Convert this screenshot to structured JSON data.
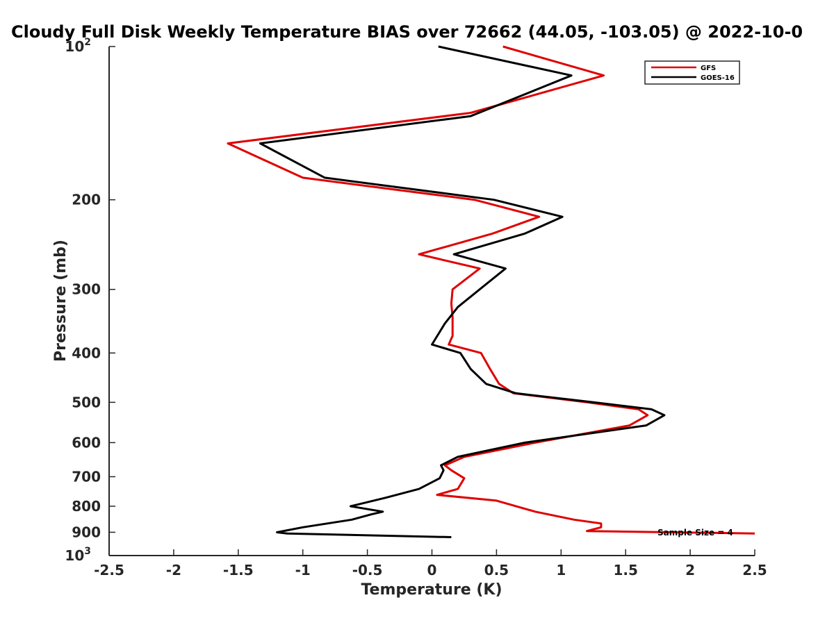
{
  "chart_data": {
    "type": "line",
    "title": "Cloudy Full Disk Weekly Temperature BIAS over 72662 (44.05, -103.05) @ 2022-10-0",
    "xlabel": "Temperature (K)",
    "ylabel": "Pressure (mb)",
    "xlim": [
      -2.5,
      2.5
    ],
    "ylim": [
      100,
      1000
    ],
    "y_scale": "log",
    "y_reversed": true,
    "grid": false,
    "legend_position": "top-right",
    "x_ticks": [
      "-2.5",
      "-2",
      "-1.5",
      "-1",
      "-0.5",
      "0",
      "0.5",
      "1",
      "1.5",
      "2",
      "2.5"
    ],
    "y_ticks": [
      {
        "value": 100,
        "base": "10",
        "exp": "2"
      },
      {
        "value": 200,
        "label": "200"
      },
      {
        "value": 300,
        "label": "300"
      },
      {
        "value": 400,
        "label": "400"
      },
      {
        "value": 500,
        "label": "500"
      },
      {
        "value": 600,
        "label": "600"
      },
      {
        "value": 700,
        "label": "700"
      },
      {
        "value": 800,
        "label": "800"
      },
      {
        "value": 900,
        "label": "900"
      },
      {
        "value": 1000,
        "base": "10",
        "exp": "3"
      }
    ],
    "annotation": "Sample Size = 4",
    "series": [
      {
        "name": "GFS",
        "color": "#e00000",
        "points": [
          [
            0.55,
            100
          ],
          [
            1.33,
            114
          ],
          [
            0.3,
            135
          ],
          [
            -1.58,
            155
          ],
          [
            -1.0,
            181
          ],
          [
            0.33,
            200
          ],
          [
            0.83,
            216
          ],
          [
            0.47,
            233
          ],
          [
            -0.1,
            256
          ],
          [
            0.37,
            273
          ],
          [
            0.16,
            300
          ],
          [
            0.15,
            320
          ],
          [
            0.16,
            340
          ],
          [
            0.16,
            370
          ],
          [
            0.13,
            385
          ],
          [
            0.38,
            400
          ],
          [
            0.45,
            430
          ],
          [
            0.52,
            460
          ],
          [
            0.63,
            480
          ],
          [
            1.2,
            500
          ],
          [
            1.6,
            516
          ],
          [
            1.67,
            530
          ],
          [
            1.53,
            555
          ],
          [
            0.8,
            600
          ],
          [
            0.25,
            640
          ],
          [
            0.1,
            665
          ],
          [
            0.15,
            680
          ],
          [
            0.25,
            705
          ],
          [
            0.2,
            740
          ],
          [
            0.04,
            760
          ],
          [
            0.5,
            780
          ],
          [
            0.8,
            820
          ],
          [
            1.1,
            850
          ],
          [
            1.31,
            865
          ],
          [
            1.31,
            880
          ],
          [
            1.2,
            895
          ],
          [
            2.5,
            905
          ]
        ]
      },
      {
        "name": "GOES-16",
        "color": "#000000",
        "points": [
          [
            0.05,
            100
          ],
          [
            1.08,
            114
          ],
          [
            0.3,
            137
          ],
          [
            -1.33,
            155
          ],
          [
            -0.83,
            181
          ],
          [
            0.48,
            200
          ],
          [
            1.01,
            216
          ],
          [
            0.72,
            233
          ],
          [
            0.17,
            256
          ],
          [
            0.57,
            273
          ],
          [
            0.37,
            300
          ],
          [
            0.2,
            325
          ],
          [
            0.1,
            350
          ],
          [
            0.0,
            385
          ],
          [
            0.22,
            400
          ],
          [
            0.3,
            430
          ],
          [
            0.42,
            460
          ],
          [
            0.65,
            480
          ],
          [
            1.25,
            500
          ],
          [
            1.7,
            516
          ],
          [
            1.8,
            530
          ],
          [
            1.66,
            555
          ],
          [
            0.72,
            600
          ],
          [
            0.2,
            640
          ],
          [
            0.07,
            665
          ],
          [
            0.09,
            680
          ],
          [
            0.06,
            705
          ],
          [
            -0.1,
            740
          ],
          [
            -0.36,
            770
          ],
          [
            -0.63,
            800
          ],
          [
            -0.38,
            820
          ],
          [
            -0.47,
            830
          ],
          [
            -0.62,
            850
          ],
          [
            -1.0,
            880
          ],
          [
            -1.2,
            900
          ],
          [
            -1.12,
            905
          ],
          [
            0.15,
            920
          ]
        ]
      }
    ]
  }
}
